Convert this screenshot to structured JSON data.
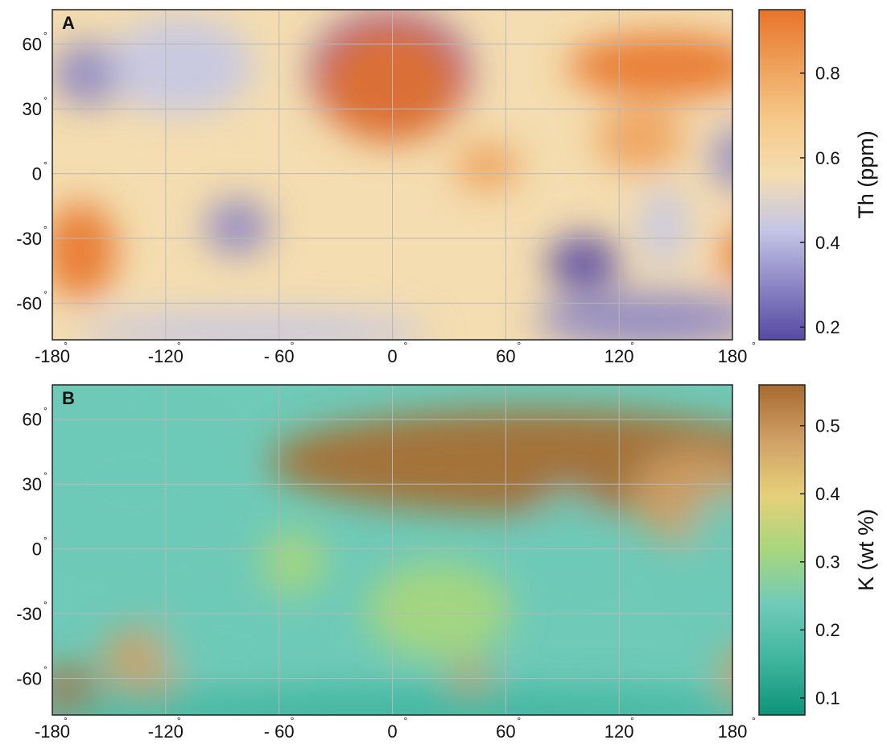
{
  "degree": "°",
  "panels": [
    {
      "label": "A",
      "xlim": [
        -180,
        180
      ],
      "ylim": [
        -77,
        76
      ],
      "xticks": [
        -180,
        -120,
        {
          "value": -60,
          "label": "- 60"
        },
        0,
        60,
        120,
        180
      ],
      "yticks": [
        60,
        30,
        0,
        -30,
        -60
      ],
      "colorbar": {
        "label": "Th (ppm)",
        "lim": [
          0.17,
          0.95
        ],
        "ticks": [
          0.8,
          0.6,
          0.4,
          0.2
        ],
        "colors": [
          "#564aa4",
          "#8c86c4",
          "#c4c6e6",
          "#f4ddb0",
          "#f6c98a",
          "#eea05a",
          "#e8732a"
        ]
      }
    },
    {
      "label": "B",
      "xlim": [
        -180,
        180
      ],
      "ylim": [
        -77,
        76
      ],
      "xticks": [
        -180,
        -120,
        {
          "value": -60,
          "label": "- 60"
        },
        0,
        60,
        120,
        180
      ],
      "yticks": [
        60,
        30,
        0,
        -30,
        -60
      ],
      "colorbar": {
        "label": "K (wt %)",
        "lim": [
          0.075,
          0.56
        ],
        "ticks": [
          0.5,
          0.4,
          0.3,
          0.2,
          0.1
        ],
        "colors": [
          "#0e9478",
          "#3fb59e",
          "#6fcab8",
          "#a8d67c",
          "#e6d07a",
          "#cfa066",
          "#a8692f"
        ]
      }
    }
  ]
}
